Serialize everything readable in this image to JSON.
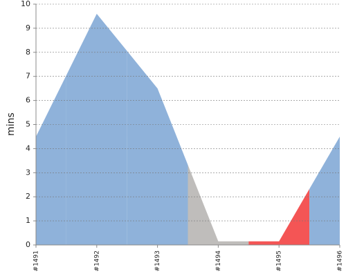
{
  "chart_data": {
    "type": "area",
    "y_label": "mins",
    "categories": [
      "#1491",
      "#1492",
      "#1493",
      "#1494",
      "#1495",
      "#1496"
    ],
    "values": [
      4.5,
      9.6,
      6.5,
      0.15,
      0.15,
      4.5
    ],
    "colors": [
      "#8fb2da",
      "#8fb2da",
      "#8fb2da",
      "#bfbdbb",
      "#f45555",
      "#8fb2da"
    ],
    "ylim": [
      0,
      10
    ],
    "yticks": [
      0,
      1,
      2,
      3,
      4,
      5,
      6,
      7,
      8,
      9,
      10
    ],
    "grid": true
  }
}
